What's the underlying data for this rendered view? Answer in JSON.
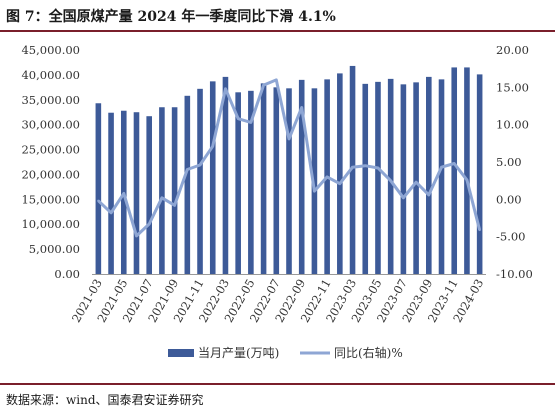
{
  "title": "图 7：全国原煤产量 2024 年一季度同比下滑 4.1%",
  "source": "数据来源：wind、国泰君安证券研究",
  "chart_data": {
    "type": "bar+line",
    "categories": [
      "2021-03",
      "2021-04",
      "2021-05",
      "2021-06",
      "2021-07",
      "2021-08",
      "2021-09",
      "2021-10",
      "2021-11",
      "2021-12",
      "2022-03",
      "2022-04",
      "2022-05",
      "2022-06",
      "2022-07",
      "2022-08",
      "2022-09",
      "2022-10",
      "2022-11",
      "2022-12",
      "2023-03",
      "2023-04",
      "2023-05",
      "2023-06",
      "2023-07",
      "2023-08",
      "2023-09",
      "2023-10",
      "2023-11",
      "2023-12",
      "2024-03"
    ],
    "x_tick_labels": [
      "2021-03",
      "2021-05",
      "2021-07",
      "2021-09",
      "2021-11",
      "2022-03",
      "2022-05",
      "2022-07",
      "2022-09",
      "2022-11",
      "2023-03",
      "2023-05",
      "2023-07",
      "2023-09",
      "2023-11",
      "2024-03"
    ],
    "x_tick_indices": [
      0,
      2,
      4,
      6,
      8,
      10,
      12,
      14,
      16,
      18,
      20,
      22,
      24,
      26,
      28,
      30
    ],
    "series": [
      {
        "name": "当月产量(万吨)",
        "axis": "left",
        "render": "bar",
        "color": "#3d5a98",
        "values": [
          34300,
          32400,
          32800,
          32500,
          31700,
          33500,
          33500,
          35800,
          37200,
          38700,
          39600,
          36500,
          36800,
          38300,
          37500,
          37300,
          39000,
          37300,
          39100,
          40300,
          41800,
          38200,
          38600,
          39200,
          38100,
          38500,
          39600,
          39100,
          41500,
          41500,
          40100
        ]
      },
      {
        "name": "同比(右轴)%",
        "axis": "right",
        "render": "line",
        "color": "#8ea6d4",
        "values": [
          -0.2,
          -1.8,
          0.8,
          -4.9,
          -3.3,
          0.2,
          -0.8,
          4.0,
          4.6,
          7.1,
          14.8,
          10.8,
          10.3,
          15.3,
          16.0,
          8.1,
          12.3,
          1.1,
          3.0,
          2.1,
          4.3,
          4.5,
          4.2,
          2.5,
          0.2,
          2.3,
          0.6,
          4.3,
          4.8,
          2.6,
          -4.1
        ]
      }
    ],
    "y_left": {
      "min": 0,
      "max": 45000,
      "step": 5000,
      "tick_labels": [
        "0.00",
        "5,000.00",
        "10,000.00",
        "15,000.00",
        "20,000.00",
        "25,000.00",
        "30,000.00",
        "35,000.00",
        "40,000.00",
        "45,000.00"
      ]
    },
    "y_right": {
      "min": -10,
      "max": 20,
      "step": 5,
      "tick_labels": [
        "-10.00",
        "-5.00",
        "0.00",
        "5.00",
        "10.00",
        "15.00",
        "20.00"
      ]
    },
    "grid": false,
    "legend_position": "bottom"
  }
}
